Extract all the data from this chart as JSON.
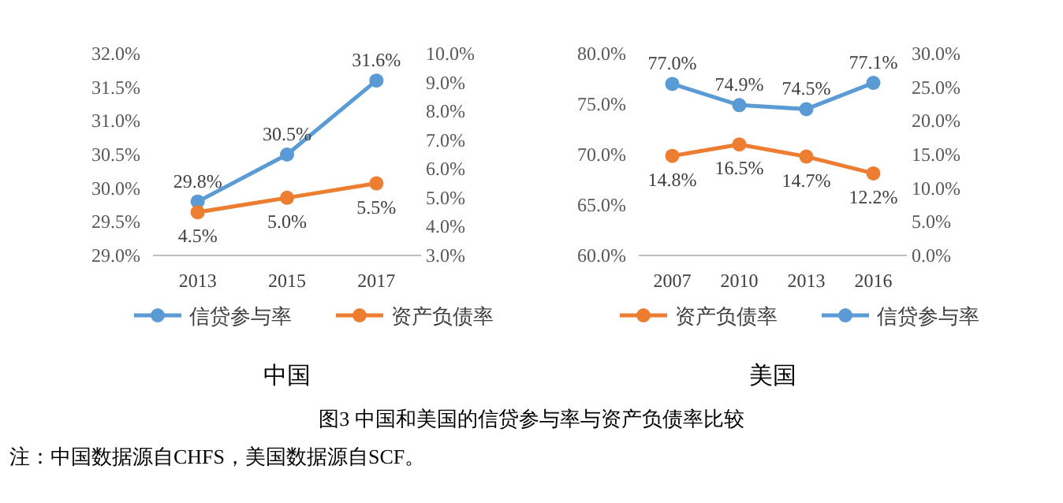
{
  "chart_data": [
    {
      "type": "line",
      "title": "中国",
      "categories": [
        "2013",
        "2015",
        "2017"
      ],
      "series": [
        {
          "name": "信贷参与率",
          "color": "#5b9bd5",
          "values": [
            29.8,
            30.5,
            31.6
          ],
          "value_labels": [
            "29.8%",
            "30.5%",
            "31.6%"
          ]
        },
        {
          "name": "资产负债率",
          "color": "#ed7d31",
          "axis": "y2",
          "values": [
            4.5,
            5.0,
            5.5
          ],
          "value_labels": [
            "4.5%",
            "5.0%",
            "5.5%"
          ]
        }
      ],
      "ylim": [
        29,
        32
      ],
      "yticks": [
        {
          "value": 29,
          "label": "29.0%"
        },
        {
          "value": 29.5,
          "label": "29.5%"
        },
        {
          "value": 30,
          "label": "30.0%"
        },
        {
          "value": 30.5,
          "label": "30.5%"
        },
        {
          "value": 31,
          "label": "31.0%"
        },
        {
          "value": 31.5,
          "label": "31.5%"
        },
        {
          "value": 32,
          "label": "32.0%"
        }
      ],
      "y2lim": [
        3,
        10
      ],
      "y2ticks": [
        {
          "value": 3,
          "label": "3.0%"
        },
        {
          "value": 4,
          "label": "4.0%"
        },
        {
          "value": 5,
          "label": "5.0%"
        },
        {
          "value": 6,
          "label": "6.0%"
        },
        {
          "value": 7,
          "label": "7.0%"
        },
        {
          "value": 8,
          "label": "8.0%"
        },
        {
          "value": 9,
          "label": "9.0%"
        },
        {
          "value": 10,
          "label": "10.0%"
        }
      ],
      "legend": "bottom",
      "marker": "circle",
      "grid": false
    },
    {
      "type": "line",
      "title": "美国",
      "categories": [
        "2007",
        "2010",
        "2013",
        "2016"
      ],
      "series": [
        {
          "name": "资产负债率",
          "color": "#ed7d31",
          "axis": "y2",
          "values": [
            14.8,
            16.5,
            14.7,
            12.2
          ],
          "value_labels": [
            "14.8%",
            "16.5%",
            "14.7%",
            "12.2%"
          ]
        },
        {
          "name": "信贷参与率",
          "color": "#5b9bd5",
          "values": [
            77.0,
            74.9,
            74.5,
            77.1
          ],
          "value_labels": [
            "77.0%",
            "74.9%",
            "74.5%",
            "77.1%"
          ]
        }
      ],
      "ylim": [
        60,
        80
      ],
      "yticks": [
        {
          "value": 60,
          "label": "60.0%"
        },
        {
          "value": 65,
          "label": "65.0%"
        },
        {
          "value": 70,
          "label": "70.0%"
        },
        {
          "value": 75,
          "label": "75.0%"
        },
        {
          "value": 80,
          "label": "80.0%"
        }
      ],
      "y2lim": [
        0,
        30
      ],
      "y2ticks": [
        {
          "value": 0,
          "label": "0.0%"
        },
        {
          "value": 5,
          "label": "5.0%"
        },
        {
          "value": 10,
          "label": "10.0%"
        },
        {
          "value": 15,
          "label": "15.0%"
        },
        {
          "value": 20,
          "label": "20.0%"
        },
        {
          "value": 25,
          "label": "25.0%"
        },
        {
          "value": 30,
          "label": "30.0%"
        }
      ],
      "legend": "bottom",
      "marker": "circle",
      "grid": false,
      "annotations": [
        "图3 中国和美国的信贷参与率与资产负债率比较",
        "注：中国数据源自CHFS，美国数据源自SCF。"
      ]
    }
  ]
}
